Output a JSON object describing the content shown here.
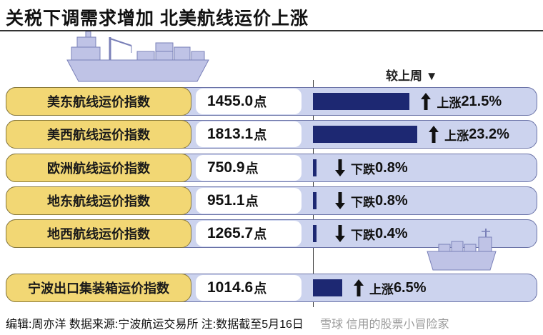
{
  "title": "关税下调需求增加 北美航线运价上涨",
  "compare_header": "较上周 ▼",
  "footer": "编辑:周亦洋 数据来源:宁波航运交易所 注:数据截至5月16日",
  "watermark": "雪球  信用的股票小冒险家",
  "colors": {
    "label_fill": "#f2d774",
    "row_fill": "#ccd3ee",
    "bar_fill": "#1d2872"
  },
  "icons": [
    "cargo-ship-icon",
    "arrow-up-icon",
    "arrow-down-icon"
  ],
  "chart_data": {
    "type": "bar",
    "unit": "点",
    "rows": [
      {
        "label": "美东航线运价指数",
        "value": "1455.0",
        "direction": "up",
        "change_word": "上涨",
        "change_pct": "21.5%",
        "change": 21.5
      },
      {
        "label": "美西航线运价指数",
        "value": "1813.1",
        "direction": "up",
        "change_word": "上涨",
        "change_pct": "23.2%",
        "change": 23.2
      },
      {
        "label": "欧洲航线运价指数",
        "value": "750.9",
        "direction": "down",
        "change_word": "下跌",
        "change_pct": "0.8%",
        "change": -0.8
      },
      {
        "label": "地东航线运价指数",
        "value": "951.1",
        "direction": "down",
        "change_word": "下跌",
        "change_pct": "0.8%",
        "change": -0.8
      },
      {
        "label": "地西航线运价指数",
        "value": "1265.7",
        "direction": "down",
        "change_word": "下跌",
        "change_pct": "0.4%",
        "change": -0.4
      },
      {
        "label": "宁波出口集装箱运价指数",
        "value": "1014.6",
        "direction": "up",
        "change_word": "上涨",
        "change_pct": "6.5%",
        "change": 6.5
      }
    ]
  }
}
